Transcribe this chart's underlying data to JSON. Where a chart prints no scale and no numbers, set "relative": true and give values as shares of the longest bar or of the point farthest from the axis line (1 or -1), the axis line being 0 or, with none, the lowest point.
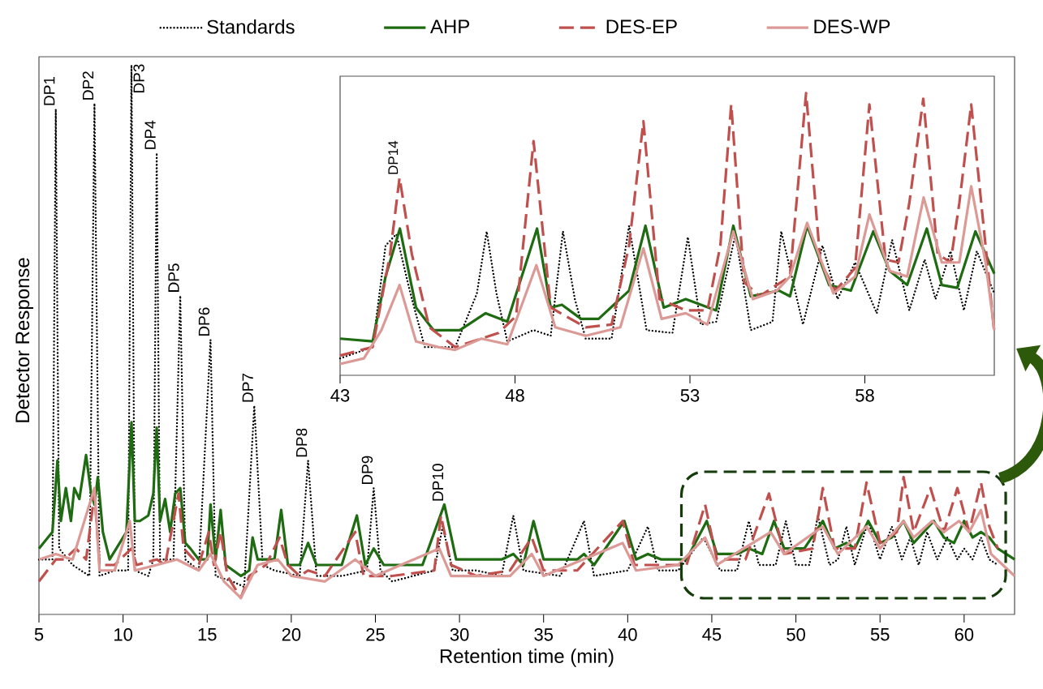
{
  "chart_data": [
    {
      "type": "line",
      "relative": true,
      "xlabel": "Retention time (min)",
      "ylabel": "Detector Response",
      "legend": "top",
      "xlim": [
        5,
        63
      ],
      "xticks": [
        5,
        10,
        15,
        20,
        25,
        30,
        35,
        40,
        45,
        50,
        55,
        60
      ],
      "annotations": [
        {
          "text": "DP1",
          "x": 6.0,
          "y": 0.92
        },
        {
          "text": "DP2",
          "x": 8.3,
          "y": 0.93
        },
        {
          "text": "DP3",
          "x": 10.5,
          "y": 1.0
        },
        {
          "text": "DP4",
          "x": 12.0,
          "y": 0.84
        },
        {
          "text": "DP5",
          "x": 13.4,
          "y": 0.58
        },
        {
          "text": "DP6",
          "x": 15.2,
          "y": 0.5
        },
        {
          "text": "DP7",
          "x": 17.8,
          "y": 0.38
        },
        {
          "text": "DP8",
          "x": 21.0,
          "y": 0.28
        },
        {
          "text": "DP9",
          "x": 24.9,
          "y": 0.23
        },
        {
          "text": "DP10",
          "x": 29.1,
          "y": 0.2
        }
      ],
      "series": [
        {
          "name": "Standards",
          "color": "#000000",
          "line_style": "dotted",
          "x": [
            5,
            5.8,
            6.0,
            6.2,
            7,
            8.0,
            8.3,
            8.6,
            9.5,
            10.3,
            10.5,
            10.7,
            11.5,
            11.8,
            12.0,
            12.2,
            13.0,
            13.4,
            13.7,
            14.5,
            15.2,
            15.5,
            16.5,
            17.2,
            17.8,
            18.3,
            19,
            20.5,
            21.0,
            21.5,
            23,
            24.5,
            24.9,
            25.3,
            26,
            28.5,
            29.0,
            29.6,
            31,
            32.5,
            33.2,
            33.8,
            36,
            37.4,
            38,
            40,
            41.2,
            41.8,
            43,
            44.5,
            45.5,
            46.5,
            47.2,
            47.8,
            48.8,
            49.4,
            50,
            50.8,
            51.3,
            52,
            52.5,
            53,
            53.5,
            54.3,
            55,
            55.7,
            56.3,
            56.8,
            57.3,
            57.8,
            58.4,
            59.0,
            59.6,
            60,
            60.5,
            61.0,
            61.5,
            62
          ],
          "values": [
            0.1,
            0.1,
            0.92,
            0.12,
            0.09,
            0.07,
            0.93,
            0.07,
            0.08,
            0.08,
            1.0,
            0.08,
            0.07,
            0.1,
            0.84,
            0.1,
            0.1,
            0.58,
            0.1,
            0.08,
            0.5,
            0.07,
            0.06,
            0.05,
            0.38,
            0.09,
            0.08,
            0.07,
            0.28,
            0.07,
            0.07,
            0.08,
            0.23,
            0.08,
            0.06,
            0.08,
            0.16,
            0.08,
            0.08,
            0.07,
            0.18,
            0.08,
            0.07,
            0.17,
            0.07,
            0.08,
            0.16,
            0.08,
            0.08,
            0.14,
            0.08,
            0.08,
            0.17,
            0.09,
            0.09,
            0.17,
            0.09,
            0.09,
            0.18,
            0.09,
            0.1,
            0.16,
            0.09,
            0.17,
            0.1,
            0.16,
            0.1,
            0.14,
            0.09,
            0.15,
            0.1,
            0.14,
            0.1,
            0.12,
            0.1,
            0.14,
            0.1,
            0.09
          ]
        },
        {
          "name": "AHP",
          "color": "#1e6b12",
          "line_style": "solid",
          "x": [
            5,
            5.8,
            6.1,
            6.3,
            6.6,
            6.9,
            7.1,
            7.4,
            7.8,
            8.1,
            8.3,
            8.5,
            8.8,
            9.2,
            9.8,
            10.2,
            10.5,
            10.7,
            11.0,
            11.5,
            11.8,
            12.0,
            12.2,
            12.5,
            12.8,
            13.1,
            13.4,
            13.7,
            14.0,
            14.5,
            15.0,
            15.2,
            15.5,
            15.8,
            16.1,
            17.0,
            17.5,
            17.7,
            18.0,
            19.0,
            19.4,
            19.8,
            20.5,
            21.0,
            21.5,
            23,
            23.9,
            24.4,
            24.9,
            25.5,
            27.8,
            29.1,
            29.8,
            32.5,
            33.2,
            33.8,
            34.4,
            35,
            37,
            37.4,
            38,
            39.8,
            40.5,
            41.2,
            42,
            43.5,
            44.7,
            45.3,
            46.5,
            47.2,
            48,
            48.7,
            49.3,
            50.5,
            51.6,
            52.3,
            53,
            53.5,
            54.3,
            55,
            55.7,
            56.4,
            57,
            58.2,
            58.8,
            59.4,
            60,
            60.5,
            61,
            61.5,
            62,
            63
          ],
          "values": [
            0.12,
            0.15,
            0.28,
            0.17,
            0.23,
            0.17,
            0.23,
            0.21,
            0.29,
            0.22,
            0.2,
            0.25,
            0.15,
            0.1,
            0.13,
            0.15,
            0.35,
            0.17,
            0.17,
            0.18,
            0.22,
            0.34,
            0.17,
            0.21,
            0.15,
            0.22,
            0.23,
            0.13,
            0.12,
            0.1,
            0.1,
            0.2,
            0.1,
            0.19,
            0.09,
            0.07,
            0.08,
            0.14,
            0.1,
            0.1,
            0.19,
            0.09,
            0.09,
            0.13,
            0.09,
            0.09,
            0.18,
            0.09,
            0.12,
            0.09,
            0.09,
            0.2,
            0.1,
            0.1,
            0.11,
            0.09,
            0.17,
            0.1,
            0.1,
            0.11,
            0.09,
            0.17,
            0.1,
            0.11,
            0.1,
            0.1,
            0.17,
            0.11,
            0.11,
            0.12,
            0.11,
            0.17,
            0.12,
            0.12,
            0.17,
            0.12,
            0.13,
            0.12,
            0.17,
            0.13,
            0.14,
            0.17,
            0.13,
            0.17,
            0.14,
            0.13,
            0.17,
            0.14,
            0.15,
            0.14,
            0.12,
            0.1
          ]
        },
        {
          "name": "DES-EP",
          "color": "#c0504d",
          "line_style": "dashed",
          "x": [
            5,
            5.5,
            6,
            6.5,
            7.2,
            7.8,
            8.3,
            8.6,
            9.5,
            10.5,
            10.8,
            12,
            12.5,
            13.3,
            13.6,
            14.5,
            15.1,
            15.4,
            15.8,
            16.2,
            17,
            17.5,
            18.5,
            19.3,
            19.8,
            20.5,
            21,
            22,
            23.8,
            24.3,
            26,
            28.5,
            28.9,
            29.5,
            31,
            33,
            34.3,
            35,
            37,
            39.7,
            40.4,
            42,
            43.5,
            44.6,
            45.3,
            47,
            48.4,
            49.3,
            51,
            51.6,
            52.3,
            53.5,
            54.2,
            55,
            56,
            56.4,
            57,
            58,
            58.8,
            59.6,
            60.3,
            61,
            61.5,
            62
          ],
          "values": [
            0.06,
            0.08,
            0.1,
            0.1,
            0.12,
            0.1,
            0.22,
            0.09,
            0.09,
            0.12,
            0.09,
            0.1,
            0.09,
            0.22,
            0.12,
            0.09,
            0.15,
            0.09,
            0.15,
            0.07,
            0.03,
            0.07,
            0.09,
            0.14,
            0.09,
            0.07,
            0.08,
            0.07,
            0.15,
            0.07,
            0.07,
            0.08,
            0.18,
            0.09,
            0.07,
            0.08,
            0.14,
            0.08,
            0.08,
            0.17,
            0.09,
            0.09,
            0.09,
            0.2,
            0.1,
            0.1,
            0.22,
            0.11,
            0.12,
            0.23,
            0.12,
            0.12,
            0.24,
            0.13,
            0.15,
            0.25,
            0.15,
            0.23,
            0.15,
            0.23,
            0.15,
            0.24,
            0.16,
            0.12
          ]
        },
        {
          "name": "DES-WP",
          "color": "#dc9a96",
          "line_style": "solid",
          "x": [
            5,
            6,
            7,
            8.3,
            8.6,
            9.5,
            10.4,
            10.7,
            12,
            13.2,
            14.5,
            15.2,
            16,
            17,
            18,
            19.2,
            20,
            22,
            23.8,
            25,
            28.8,
            29.5,
            33,
            34.3,
            35,
            39.7,
            40.5,
            43,
            44.6,
            45.3,
            48.5,
            49.3,
            51.6,
            52.5,
            54.2,
            55,
            56.4,
            57,
            58.1,
            58.8,
            59.7,
            60.3,
            61,
            61.6,
            62.3,
            63
          ],
          "values": [
            0.1,
            0.11,
            0.1,
            0.23,
            0.08,
            0.08,
            0.17,
            0.08,
            0.09,
            0.1,
            0.08,
            0.11,
            0.06,
            0.03,
            0.09,
            0.1,
            0.07,
            0.06,
            0.1,
            0.07,
            0.12,
            0.07,
            0.07,
            0.11,
            0.07,
            0.13,
            0.08,
            0.09,
            0.14,
            0.09,
            0.15,
            0.11,
            0.16,
            0.11,
            0.16,
            0.12,
            0.17,
            0.14,
            0.17,
            0.15,
            0.17,
            0.15,
            0.19,
            0.11,
            0.09,
            0.07
          ]
        }
      ]
    },
    {
      "type": "line",
      "relative": true,
      "xlim": [
        43,
        61.7
      ],
      "xticks": [
        43,
        48,
        53,
        58
      ],
      "annotations": [
        {
          "text": "DP14",
          "x": 44.7,
          "y": 0.7
        }
      ],
      "series": [
        {
          "color": "#000000",
          "line_style": "dotted",
          "x": [
            43.0,
            43.93,
            44.3,
            44.61,
            44.99,
            45.42,
            46.29,
            46.91,
            47.19,
            47.47,
            47.78,
            48.53,
            49.02,
            49.37,
            49.71,
            50.02,
            50.76,
            51.26,
            51.76,
            52.5,
            52.94,
            53.31,
            53.75,
            54.3,
            54.74,
            55.36,
            55.61,
            56.23,
            56.79,
            57.22,
            57.72,
            58.34,
            58.78,
            59.27,
            59.71,
            60.02,
            60.45,
            60.83,
            61.2,
            61.7
          ],
          "values": [
            0.06,
            0.1,
            0.46,
            0.5,
            0.3,
            0.1,
            0.1,
            0.29,
            0.51,
            0.29,
            0.12,
            0.16,
            0.14,
            0.51,
            0.27,
            0.13,
            0.13,
            0.53,
            0.16,
            0.15,
            0.49,
            0.18,
            0.19,
            0.5,
            0.16,
            0.19,
            0.51,
            0.18,
            0.46,
            0.27,
            0.4,
            0.22,
            0.48,
            0.23,
            0.41,
            0.27,
            0.44,
            0.23,
            0.44,
            0.29
          ]
        },
        {
          "color": "#1e6b12",
          "line_style": "solid",
          "x": [
            43.0,
            43.93,
            44.3,
            44.71,
            45.17,
            45.67,
            46.42,
            47.16,
            47.78,
            48.63,
            49.02,
            49.34,
            49.89,
            50.39,
            51.26,
            51.73,
            52.25,
            52.88,
            53.75,
            54.24,
            54.74,
            55.55,
            55.86,
            56.35,
            56.98,
            57.6,
            58.24,
            58.71,
            59.21,
            59.77,
            60.2,
            60.64,
            61.16,
            61.7
          ],
          "values": [
            0.13,
            0.12,
            0.35,
            0.52,
            0.24,
            0.16,
            0.16,
            0.22,
            0.19,
            0.52,
            0.24,
            0.25,
            0.2,
            0.2,
            0.3,
            0.53,
            0.24,
            0.27,
            0.23,
            0.53,
            0.28,
            0.3,
            0.28,
            0.53,
            0.32,
            0.3,
            0.51,
            0.37,
            0.32,
            0.52,
            0.32,
            0.31,
            0.51,
            0.36
          ]
        },
        {
          "color": "#c0504d",
          "line_style": "dashed",
          "x": [
            43.0,
            43.93,
            44.43,
            44.7,
            45.05,
            45.55,
            46.29,
            47.53,
            48.03,
            48.53,
            49.02,
            50.02,
            50.76,
            51.26,
            51.67,
            52.13,
            52.88,
            53.5,
            53.87,
            54.18,
            54.55,
            54.99,
            55.48,
            55.86,
            56.32,
            56.73,
            57.16,
            57.72,
            58.13,
            58.59,
            58.96,
            59.27,
            59.67,
            60.08,
            60.45,
            60.7,
            61.04,
            61.45,
            61.7
          ],
          "values": [
            0.07,
            0.1,
            0.43,
            0.7,
            0.43,
            0.17,
            0.1,
            0.15,
            0.21,
            0.83,
            0.24,
            0.17,
            0.18,
            0.46,
            0.9,
            0.27,
            0.23,
            0.23,
            0.46,
            0.96,
            0.33,
            0.28,
            0.32,
            0.35,
            1.0,
            0.4,
            0.3,
            0.38,
            0.96,
            0.41,
            0.4,
            0.61,
            0.98,
            0.43,
            0.4,
            0.61,
            0.96,
            0.46,
            0.15
          ]
        },
        {
          "color": "#dc9a96",
          "line_style": "solid",
          "x": [
            43.0,
            43.68,
            44.18,
            44.7,
            45.17,
            45.8,
            46.29,
            47.04,
            47.78,
            48.61,
            49.15,
            50.02,
            51.01,
            51.67,
            52.19,
            52.88,
            53.5,
            54.24,
            54.8,
            55.48,
            55.86,
            56.35,
            57.1,
            57.72,
            58.13,
            58.71,
            59.21,
            59.68,
            60.2,
            60.7,
            61.04,
            61.45,
            61.7
          ],
          "values": [
            0.04,
            0.06,
            0.16,
            0.32,
            0.12,
            0.1,
            0.09,
            0.13,
            0.11,
            0.39,
            0.17,
            0.14,
            0.17,
            0.45,
            0.2,
            0.22,
            0.18,
            0.51,
            0.27,
            0.3,
            0.35,
            0.54,
            0.29,
            0.35,
            0.57,
            0.37,
            0.35,
            0.63,
            0.4,
            0.4,
            0.67,
            0.4,
            0.16
          ]
        }
      ]
    }
  ]
}
